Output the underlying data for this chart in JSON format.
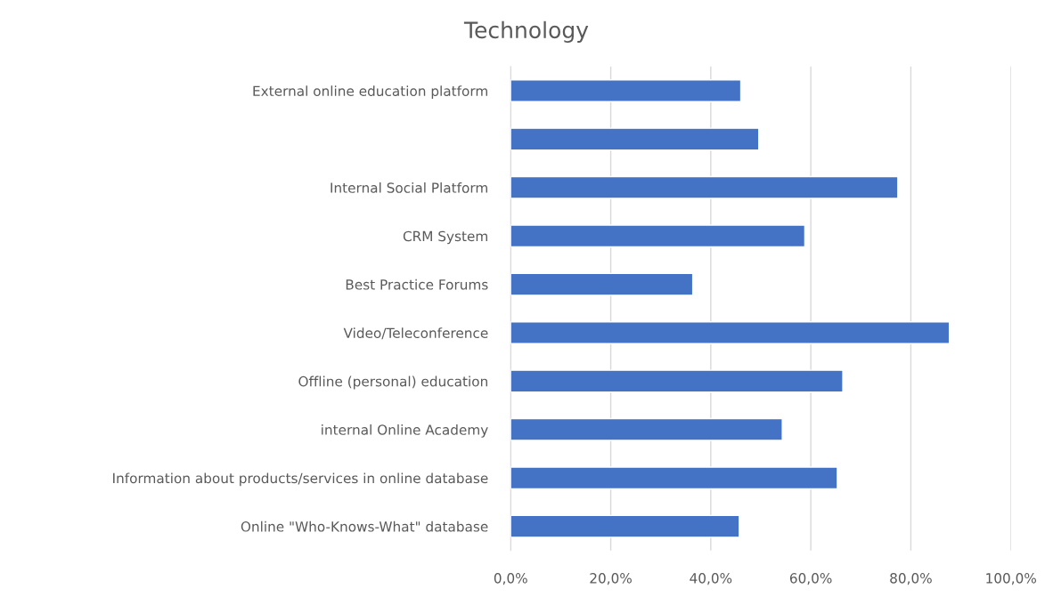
{
  "chart_data": {
    "type": "bar",
    "orientation": "horizontal",
    "title": "Technology",
    "categories": [
      "External online education platform",
      null,
      "Internal Social Platform",
      "CRM System",
      "Best Practice Forums",
      "Video/Teleconference",
      "Offline (personal) education",
      "internal Online Academy",
      "Information about products/services in online database",
      "Online \"Who-Knows-What\" database"
    ],
    "values": [
      46.0,
      49.6,
      77.4,
      58.8,
      36.4,
      87.7,
      66.4,
      54.3,
      65.3,
      45.7
    ],
    "color": "#4472c4",
    "xlim": [
      0,
      100
    ],
    "xticks": [
      {
        "value": 0,
        "label": "0,0%"
      },
      {
        "value": 20,
        "label": "20,0%"
      },
      {
        "value": 40,
        "label": "40,0%"
      },
      {
        "value": 60,
        "label": "60,0%"
      },
      {
        "value": 80,
        "label": "80,0%"
      },
      {
        "value": 100,
        "label": "100,0%"
      }
    ],
    "grid": "x",
    "legend": false
  }
}
